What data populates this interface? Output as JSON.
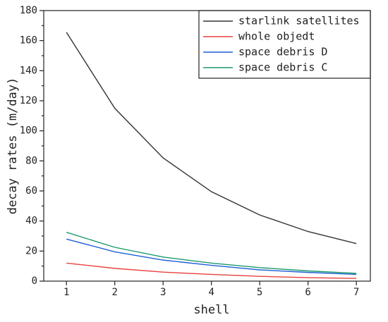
{
  "chart_data": {
    "type": "line",
    "x_label": "shell",
    "y_label": "decay rates (m/day)",
    "x": [
      1,
      2,
      3,
      4,
      5,
      6,
      7
    ],
    "series": [
      {
        "name": "starlink satellites",
        "color": "#333333",
        "values": [
          165.5,
          115,
          82,
          59.5,
          44,
          33,
          25
        ]
      },
      {
        "name": "whole objedt",
        "color": "#e8413c",
        "values": [
          12,
          8.5,
          6,
          4.5,
          3.2,
          2.3,
          1.8
        ]
      },
      {
        "name": "space debris D",
        "color": "#1f5fd6",
        "values": [
          28,
          19.5,
          14,
          10.5,
          7.5,
          5.8,
          4.5
        ]
      },
      {
        "name": "space debris C",
        "color": "#1a9a6a",
        "values": [
          32.5,
          22.5,
          16,
          12,
          9,
          6.8,
          5.2
        ]
      }
    ],
    "xlim": [
      0.53,
      7.29
    ],
    "xticks": [
      1,
      2,
      3,
      4,
      5,
      6,
      7
    ],
    "ylim": [
      0,
      180
    ],
    "yticks": [
      0,
      20,
      40,
      60,
      80,
      100,
      120,
      140,
      160,
      180
    ],
    "legend": "top-right"
  }
}
